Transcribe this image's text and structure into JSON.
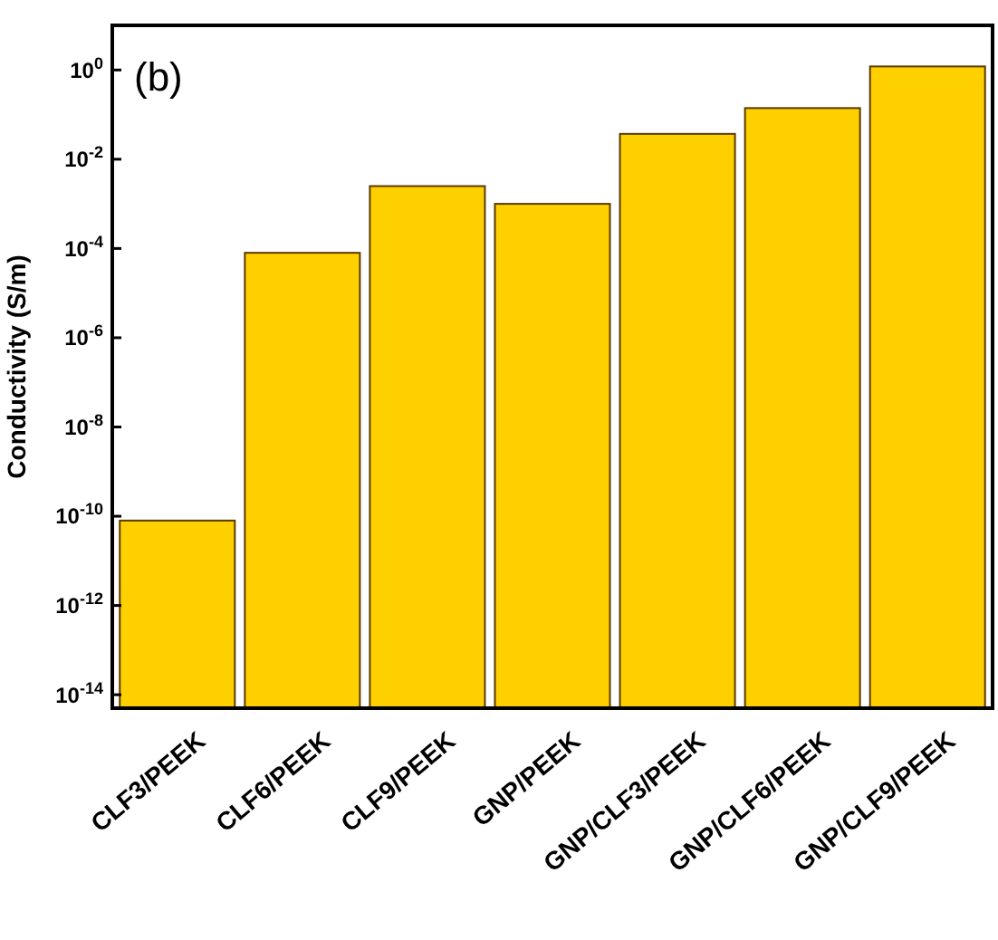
{
  "chart_data": {
    "type": "bar",
    "ylabel": "Conductivity (S/m)",
    "log": "y",
    "categories": [
      "CLF3/PEEK",
      "CLF6/PEEK",
      "CLF9/PEEK",
      "GNP/PEEK",
      "GNP/CLF3/PEEK",
      "GNP/CLF6/PEEK",
      "GNP/CLF9/PEEK"
    ],
    "values": [
      8e-11,
      8e-05,
      0.0025,
      0.001,
      0.037,
      0.14,
      1.2
    ],
    "color": "#ffd000",
    "ylim": [
      5e-15,
      10
    ],
    "yticks": [
      {
        "value": 1e-14,
        "label": "10$^{-14}$"
      },
      {
        "value": 1e-12,
        "label": "10$^{-12}$"
      },
      {
        "value": 1e-10,
        "label": "10$^{-10}$"
      },
      {
        "value": 1e-08,
        "label": "10$^{-8}$"
      },
      {
        "value": 1e-06,
        "label": "10$^{-6}$"
      },
      {
        "value": 0.0001,
        "label": "10$^{-4}$"
      },
      {
        "value": 0.01,
        "label": "10$^{-2}$"
      },
      {
        "value": 1,
        "label": "10$^{0}$"
      }
    ],
    "annotations": [
      "(b)"
    ]
  }
}
